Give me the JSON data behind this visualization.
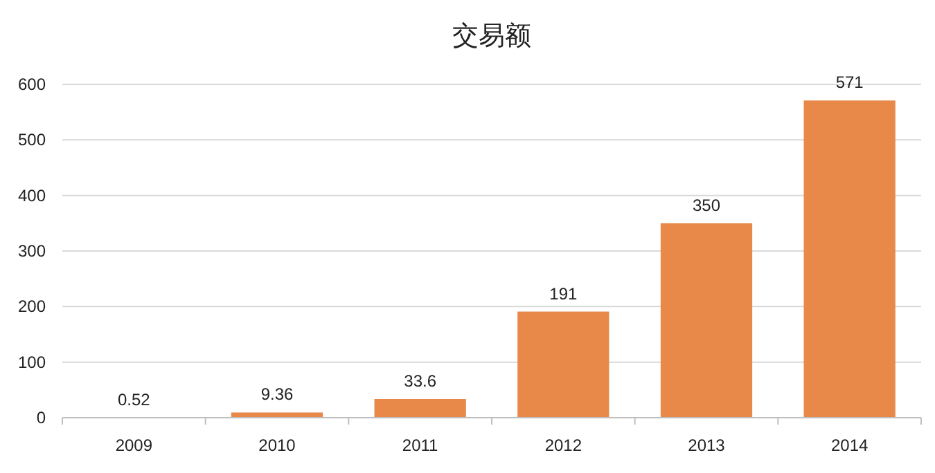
{
  "chart_data": {
    "type": "bar",
    "title": "交易额",
    "categories": [
      "2009",
      "2010",
      "2011",
      "2012",
      "2013",
      "2014"
    ],
    "values": [
      0.52,
      9.36,
      33.6,
      191,
      350,
      571
    ],
    "color": "#e8894a",
    "ylim": [
      0,
      600
    ],
    "yticks": [
      0,
      100,
      200,
      300,
      400,
      500,
      600
    ],
    "grid": "y",
    "data_labels": true
  }
}
